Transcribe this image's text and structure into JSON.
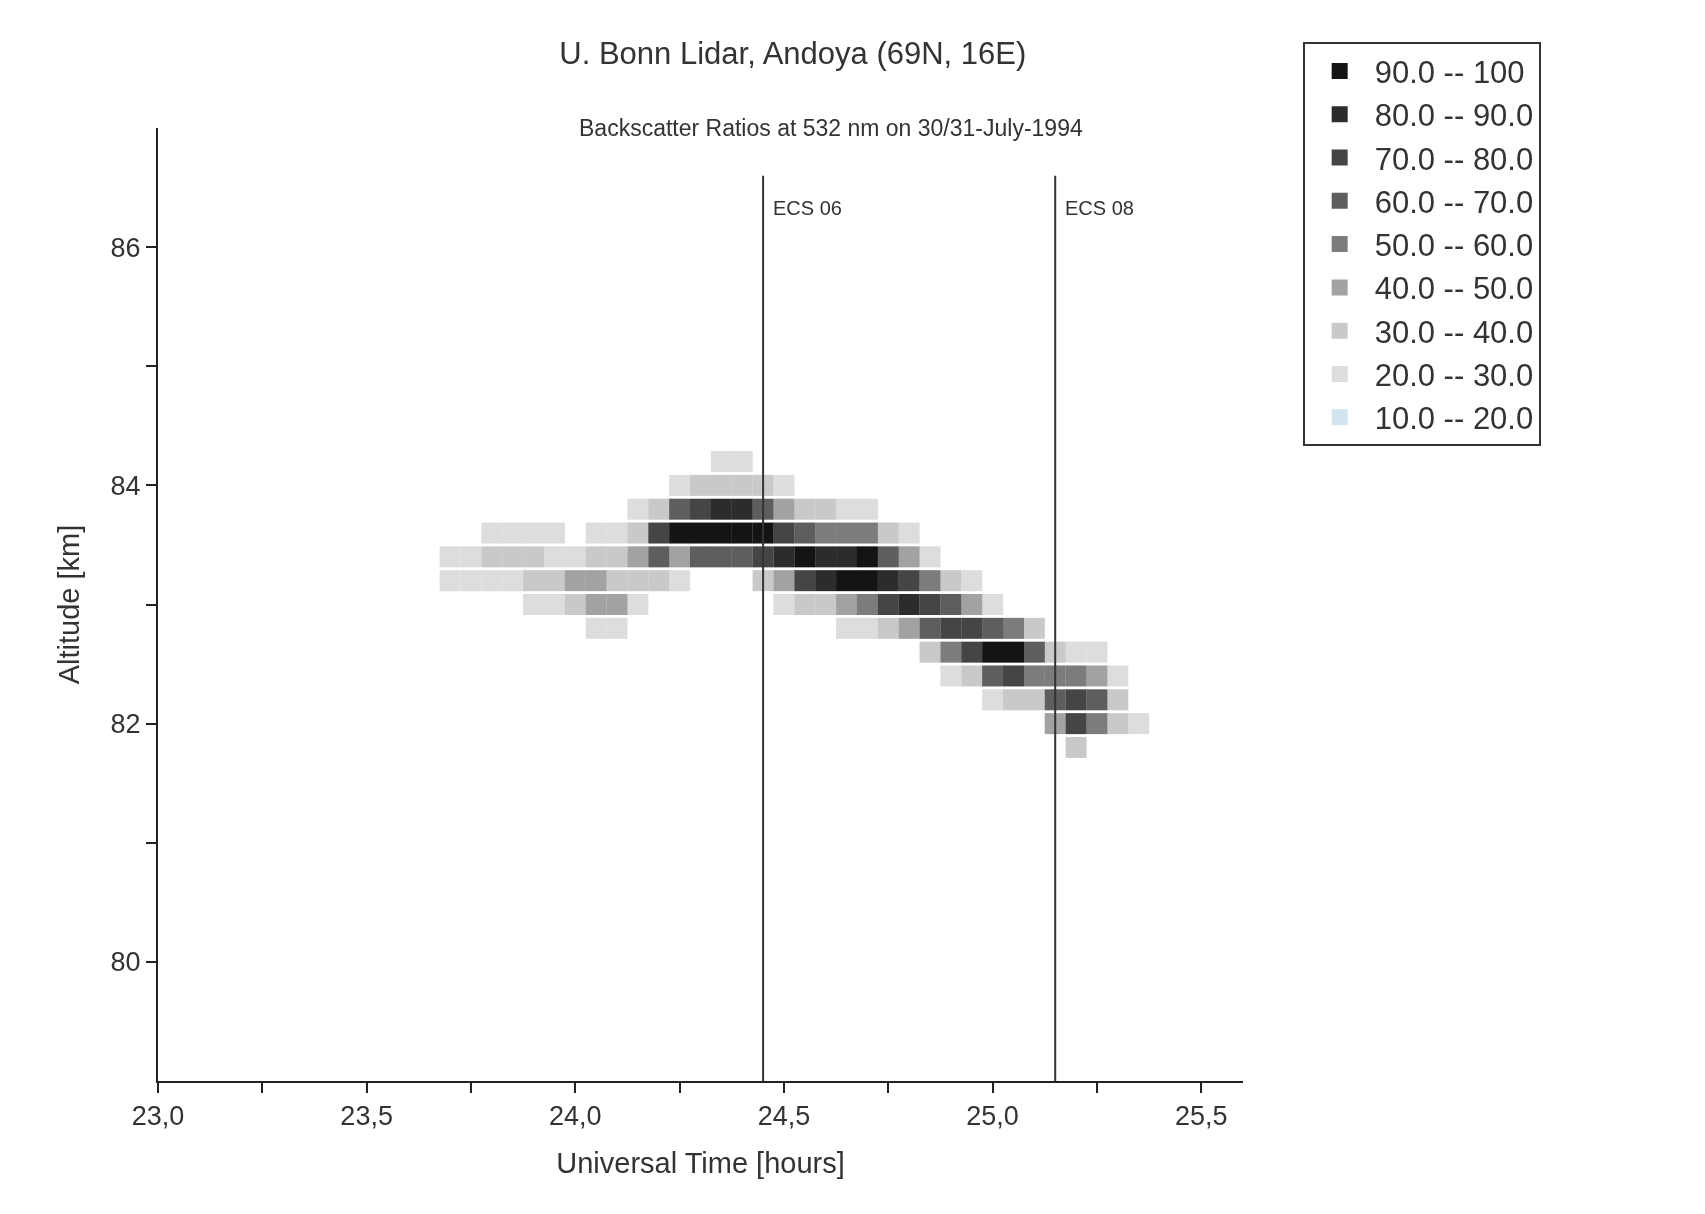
{
  "chart_data": {
    "type": "scatter",
    "title": "U. Bonn Lidar, Andoya (69N, 16E)",
    "subtitle": "Backscatter Ratios at 532 nm on 30/31-July-1994",
    "xlabel": "Universal Time [hours]",
    "ylabel": "Altitude [km]",
    "marker": "square",
    "legend": "top right",
    "grid": false,
    "xlim": [
      23.0,
      25.6
    ],
    "ylim": [
      79.0,
      87.0
    ],
    "xticks": [
      {
        "value": 23.0,
        "label": "23,0"
      },
      {
        "value": 23.25,
        "label": null
      },
      {
        "value": 23.5,
        "label": "23,5"
      },
      {
        "value": 23.75,
        "label": null
      },
      {
        "value": 24.0,
        "label": "24,0"
      },
      {
        "value": 24.25,
        "label": null
      },
      {
        "value": 24.5,
        "label": "24,5"
      },
      {
        "value": 24.75,
        "label": null
      },
      {
        "value": 25.0,
        "label": "25,0"
      },
      {
        "value": 25.25,
        "label": null
      },
      {
        "value": 25.5,
        "label": "25,5"
      }
    ],
    "yticks": [
      80,
      {
        "value": 81,
        "label": null
      },
      82,
      {
        "value": 83,
        "label": null
      },
      84,
      {
        "value": 85,
        "label": null
      },
      86
    ],
    "ref_lines": [
      {
        "axis": "x",
        "value": 24.45,
        "label": "ECS 06",
        "color": "#333333"
      },
      {
        "axis": "x",
        "value": 25.15,
        "label": "ECS 08",
        "color": "#333333"
      }
    ],
    "series": [
      {
        "name": "90.0 -- 100",
        "color": "#141414",
        "x": [
          24.25,
          24.3,
          24.35,
          24.4,
          24.45,
          24.55,
          24.65,
          24.7,
          24.7,
          25.0,
          25.05
        ],
        "values": [
          83.6,
          83.6,
          83.6,
          83.6,
          83.6,
          83.4,
          83.2,
          83.2,
          83.4,
          82.6,
          82.6
        ]
      },
      {
        "name": "80.0 -- 90.0",
        "color": "#2c2c2c",
        "x": [
          24.35,
          24.4,
          24.5,
          24.6,
          24.6,
          24.65,
          24.75,
          24.8
        ],
        "values": [
          83.8,
          83.8,
          83.4,
          83.2,
          83.4,
          83.4,
          83.2,
          83.0
        ]
      },
      {
        "name": "70.0 -- 80.0",
        "color": "#454545",
        "x": [
          24.2,
          24.3,
          24.45,
          24.5,
          24.55,
          24.75,
          24.8,
          24.85,
          24.9,
          24.95,
          24.95,
          25.05,
          25.2,
          25.2
        ],
        "values": [
          83.6,
          83.8,
          83.4,
          83.6,
          83.2,
          83.0,
          83.2,
          83.0,
          82.8,
          82.6,
          82.8,
          82.4,
          82.0,
          82.2
        ]
      },
      {
        "name": "60.0 -- 70.0",
        "color": "#5e5e5e",
        "x": [
          24.2,
          24.25,
          24.3,
          24.35,
          24.4,
          24.45,
          24.55,
          24.75,
          24.85,
          24.9,
          25.0,
          25.0,
          25.1,
          25.15,
          25.25
        ],
        "values": [
          83.4,
          83.8,
          83.4,
          83.4,
          83.4,
          83.8,
          83.6,
          83.4,
          82.8,
          83.0,
          82.4,
          82.8,
          82.6,
          82.2,
          82.2
        ]
      },
      {
        "name": "50.0 -- 60.0",
        "color": "#7c7c7c",
        "x": [
          24.6,
          24.65,
          24.7,
          24.7,
          24.85,
          24.9,
          25.05,
          25.1,
          25.15,
          25.2,
          25.25
        ],
        "values": [
          83.6,
          83.6,
          83.0,
          83.6,
          83.2,
          82.6,
          82.8,
          82.4,
          82.4,
          82.4,
          82.0
        ]
      },
      {
        "name": "40.0 -- 50.0",
        "color": "#a2a2a2",
        "x": [
          24.0,
          24.05,
          24.05,
          24.1,
          24.15,
          24.25,
          24.5,
          24.5,
          24.65,
          24.8,
          24.8,
          24.95,
          25.15,
          25.25
        ],
        "values": [
          83.2,
          83.0,
          83.2,
          83.0,
          83.4,
          83.4,
          83.2,
          83.8,
          83.0,
          82.8,
          83.4,
          83.0,
          82.0,
          82.4
        ]
      },
      {
        "name": "30.0 -- 40.0",
        "color": "#c9c9c9",
        "x": [
          23.8,
          23.85,
          23.9,
          23.9,
          23.95,
          24.0,
          24.05,
          24.1,
          24.1,
          24.15,
          24.15,
          24.2,
          24.2,
          24.3,
          24.35,
          24.4,
          24.45,
          24.45,
          24.55,
          24.55,
          24.6,
          24.6,
          24.75,
          24.75,
          24.85,
          24.9,
          24.95,
          25.05,
          25.1,
          25.1,
          25.15,
          25.2,
          25.3,
          25.3
        ],
        "values": [
          83.4,
          83.4,
          83.2,
          83.4,
          83.2,
          83.0,
          83.4,
          83.2,
          83.4,
          83.2,
          83.6,
          83.2,
          83.8,
          84.0,
          84.0,
          84.0,
          83.2,
          84.0,
          83.0,
          83.8,
          83.0,
          83.8,
          82.8,
          83.6,
          82.6,
          83.2,
          82.4,
          82.2,
          82.2,
          82.8,
          82.6,
          81.8,
          82.0,
          82.2
        ]
      },
      {
        "name": "20.0 -- 30.0",
        "color": "#dddddd",
        "x": [
          23.7,
          23.7,
          23.75,
          23.75,
          23.8,
          23.8,
          23.85,
          23.85,
          23.9,
          23.9,
          23.95,
          23.95,
          23.95,
          24.0,
          24.05,
          24.05,
          24.1,
          24.1,
          24.15,
          24.15,
          24.25,
          24.25,
          24.35,
          24.4,
          24.5,
          24.5,
          24.65,
          24.65,
          24.7,
          24.7,
          24.8,
          24.85,
          24.9,
          24.95,
          25.0,
          25.0,
          25.2,
          25.25,
          25.3,
          25.35
        ],
        "values": [
          83.2,
          83.4,
          83.2,
          83.4,
          83.2,
          83.6,
          83.2,
          83.6,
          83.0,
          83.6,
          83.0,
          83.4,
          83.6,
          83.4,
          82.8,
          83.6,
          82.8,
          83.6,
          83.0,
          83.8,
          83.2,
          84.0,
          84.2,
          84.2,
          83.0,
          84.0,
          82.8,
          83.8,
          82.8,
          83.8,
          83.6,
          83.4,
          82.4,
          83.2,
          82.2,
          83.0,
          82.6,
          82.6,
          82.4,
          82.0
        ]
      },
      {
        "name": "10.0 -- 20.0"
      }
    ]
  }
}
